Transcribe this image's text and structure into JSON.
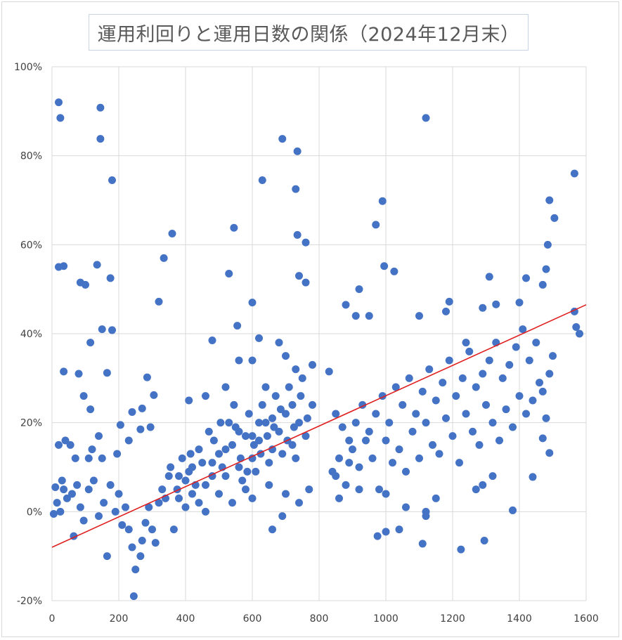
{
  "chart_data": {
    "type": "scatter",
    "title": "運用利回りと運用日数の関係（2024年12月末）",
    "xlabel": "",
    "ylabel": "",
    "xlim": [
      0,
      1600
    ],
    "ylim": [
      -0.2,
      1.0
    ],
    "x_ticks": [
      0,
      200,
      400,
      600,
      800,
      1000,
      1200,
      1400,
      1600
    ],
    "x_tick_labels": [
      "0",
      "200",
      "400",
      "600",
      "800",
      "1000",
      "1200",
      "1400",
      "1600"
    ],
    "y_ticks": [
      -0.2,
      0.0,
      0.2,
      0.4,
      0.6,
      0.8,
      1.0
    ],
    "y_tick_labels": [
      "-20%",
      "0%",
      "20%",
      "40%",
      "60%",
      "80%",
      "100%"
    ],
    "grid": true,
    "legend": "none",
    "colors": {
      "points": "#4472c4",
      "trendline": "#e02020",
      "grid": "#d9d9d9"
    },
    "trendline": {
      "x": [
        0,
        1600
      ],
      "y": [
        -0.08,
        0.465
      ]
    },
    "series": [
      {
        "points": [
          [
            20,
            0.92
          ],
          [
            25,
            0.885
          ],
          [
            145,
            0.908
          ],
          [
            145,
            0.838
          ],
          [
            180,
            0.745
          ],
          [
            20,
            0.55
          ],
          [
            35,
            0.552
          ],
          [
            85,
            0.515
          ],
          [
            100,
            0.51
          ],
          [
            135,
            0.555
          ],
          [
            175,
            0.525
          ],
          [
            150,
            0.41
          ],
          [
            180,
            0.408
          ],
          [
            115,
            0.38
          ],
          [
            35,
            0.315
          ],
          [
            80,
            0.31
          ],
          [
            165,
            0.312
          ],
          [
            320,
            0.472
          ],
          [
            335,
            0.57
          ],
          [
            360,
            0.625
          ],
          [
            285,
            0.302
          ],
          [
            305,
            0.262
          ],
          [
            270,
            0.232
          ],
          [
            240,
            0.224
          ],
          [
            205,
            0.195
          ],
          [
            265,
            0.185
          ],
          [
            295,
            0.19
          ],
          [
            230,
            0.16
          ],
          [
            195,
            0.13
          ],
          [
            115,
            0.23
          ],
          [
            95,
            0.26
          ],
          [
            40,
            0.16
          ],
          [
            55,
            0.15
          ],
          [
            20,
            0.15
          ],
          [
            110,
            0.12
          ],
          [
            140,
            0.17
          ],
          [
            150,
            0.12
          ],
          [
            70,
            0.12
          ],
          [
            120,
            0.14
          ],
          [
            10,
            0.055
          ],
          [
            15,
            0.02
          ],
          [
            25,
            0.0
          ],
          [
            35,
            0.05
          ],
          [
            45,
            0.03
          ],
          [
            60,
            0.04
          ],
          [
            5,
            -0.005
          ],
          [
            30,
            0.07
          ],
          [
            75,
            0.06
          ],
          [
            85,
            0.01
          ],
          [
            95,
            -0.02
          ],
          [
            65,
            -0.055
          ],
          [
            110,
            0.05
          ],
          [
            125,
            0.07
          ],
          [
            140,
            -0.01
          ],
          [
            155,
            0.02
          ],
          [
            165,
            -0.1
          ],
          [
            175,
            0.06
          ],
          [
            190,
            0.0
          ],
          [
            200,
            0.04
          ],
          [
            210,
            -0.03
          ],
          [
            220,
            0.01
          ],
          [
            230,
            -0.04
          ],
          [
            240,
            -0.08
          ],
          [
            250,
            -0.13
          ],
          [
            245,
            -0.19
          ],
          [
            265,
            -0.1
          ],
          [
            270,
            -0.065
          ],
          [
            280,
            -0.025
          ],
          [
            290,
            0.01
          ],
          [
            300,
            -0.04
          ],
          [
            310,
            -0.07
          ],
          [
            320,
            0.02
          ],
          [
            330,
            0.05
          ],
          [
            340,
            0.03
          ],
          [
            350,
            0.08
          ],
          [
            365,
            -0.04
          ],
          [
            380,
            0.03
          ],
          [
            400,
            0.07
          ],
          [
            420,
            0.1
          ],
          [
            440,
            0.02
          ],
          [
            460,
            0.06
          ],
          [
            480,
            0.11
          ],
          [
            500,
            0.13
          ],
          [
            520,
            0.08
          ],
          [
            540,
            0.15
          ],
          [
            560,
            0.1
          ],
          [
            580,
            0.17
          ],
          [
            600,
            0.12
          ],
          [
            620,
            0.16
          ],
          [
            640,
            0.2
          ],
          [
            660,
            0.14
          ],
          [
            680,
            0.18
          ],
          [
            700,
            0.22
          ],
          [
            720,
            0.15
          ],
          [
            740,
            0.2
          ],
          [
            760,
            0.17
          ],
          [
            780,
            0.24
          ],
          [
            550,
            0.19
          ],
          [
            500,
            0.04
          ],
          [
            460,
            0.0
          ],
          [
            430,
            0.06
          ],
          [
            410,
            0.09
          ],
          [
            390,
            0.12
          ],
          [
            375,
            0.05
          ],
          [
            440,
            0.14
          ],
          [
            470,
            0.18
          ],
          [
            510,
            0.1
          ],
          [
            530,
            0.2
          ],
          [
            570,
            0.07
          ],
          [
            590,
            0.22
          ],
          [
            610,
            0.09
          ],
          [
            630,
            0.24
          ],
          [
            650,
            0.11
          ],
          [
            670,
            0.26
          ],
          [
            690,
            0.13
          ],
          [
            710,
            0.28
          ],
          [
            730,
            0.12
          ],
          [
            750,
            0.3
          ],
          [
            770,
            0.05
          ],
          [
            600,
            0.03
          ],
          [
            650,
            0.06
          ],
          [
            700,
            0.04
          ],
          [
            740,
            0.02
          ],
          [
            660,
            -0.04
          ],
          [
            690,
            -0.01
          ],
          [
            540,
            0.02
          ],
          [
            580,
            0.05
          ],
          [
            480,
            0.08
          ],
          [
            520,
            0.14
          ],
          [
            560,
            0.18
          ],
          [
            620,
            0.2
          ],
          [
            720,
            0.24
          ],
          [
            660,
            0.21
          ],
          [
            600,
            0.17
          ],
          [
            450,
            0.11
          ],
          [
            420,
            0.04
          ],
          [
            400,
            0.01
          ],
          [
            380,
            0.08
          ],
          [
            355,
            0.1
          ],
          [
            415,
            0.13
          ],
          [
            485,
            0.16
          ],
          [
            505,
            0.2
          ],
          [
            545,
            0.24
          ],
          [
            565,
            0.12
          ],
          [
            585,
            0.09
          ],
          [
            605,
            0.15
          ],
          [
            625,
            0.13
          ],
          [
            645,
            0.17
          ],
          [
            665,
            0.19
          ],
          [
            685,
            0.23
          ],
          [
            705,
            0.16
          ],
          [
            725,
            0.19
          ],
          [
            745,
            0.26
          ],
          [
            765,
            0.21
          ],
          [
            780,
            0.33
          ],
          [
            730,
            0.32
          ],
          [
            700,
            0.35
          ],
          [
            680,
            0.38
          ],
          [
            620,
            0.39
          ],
          [
            600,
            0.47
          ],
          [
            555,
            0.418
          ],
          [
            545,
            0.638
          ],
          [
            530,
            0.535
          ],
          [
            480,
            0.385
          ],
          [
            600,
            0.34
          ],
          [
            640,
            0.28
          ],
          [
            520,
            0.28
          ],
          [
            460,
            0.26
          ],
          [
            410,
            0.25
          ],
          [
            560,
            0.34
          ],
          [
            630,
            0.745
          ],
          [
            690,
            0.838
          ],
          [
            735,
            0.81
          ],
          [
            730,
            0.725
          ],
          [
            735,
            0.622
          ],
          [
            760,
            0.605
          ],
          [
            740,
            0.53
          ],
          [
            760,
            0.515
          ],
          [
            830,
            0.315
          ],
          [
            850,
            0.22
          ],
          [
            870,
            0.19
          ],
          [
            890,
            0.16
          ],
          [
            910,
            0.2
          ],
          [
            930,
            0.24
          ],
          [
            950,
            0.18
          ],
          [
            970,
            0.22
          ],
          [
            990,
            0.26
          ],
          [
            1010,
            0.2
          ],
          [
            1030,
            0.28
          ],
          [
            1050,
            0.24
          ],
          [
            1070,
            0.3
          ],
          [
            1090,
            0.22
          ],
          [
            1110,
            0.27
          ],
          [
            1130,
            0.32
          ],
          [
            1150,
            0.25
          ],
          [
            1170,
            0.29
          ],
          [
            1190,
            0.34
          ],
          [
            1210,
            0.26
          ],
          [
            1230,
            0.3
          ],
          [
            1250,
            0.36
          ],
          [
            1270,
            0.28
          ],
          [
            1290,
            0.31
          ],
          [
            1310,
            0.34
          ],
          [
            1330,
            0.38
          ],
          [
            1350,
            0.3
          ],
          [
            1370,
            0.33
          ],
          [
            1390,
            0.37
          ],
          [
            1410,
            0.41
          ],
          [
            1430,
            0.34
          ],
          [
            1450,
            0.38
          ],
          [
            1470,
            0.27
          ],
          [
            1490,
            0.31
          ],
          [
            1500,
            0.35
          ],
          [
            840,
            0.09
          ],
          [
            860,
            0.12
          ],
          [
            880,
            0.06
          ],
          [
            900,
            0.14
          ],
          [
            920,
            0.1
          ],
          [
            940,
            0.16
          ],
          [
            960,
            0.12
          ],
          [
            980,
            0.05
          ],
          [
            1000,
            0.16
          ],
          [
            1020,
            0.11
          ],
          [
            1040,
            0.14
          ],
          [
            1060,
            0.09
          ],
          [
            1080,
            0.18
          ],
          [
            1100,
            0.12
          ],
          [
            1120,
            0.2
          ],
          [
            1140,
            0.15
          ],
          [
            1160,
            0.13
          ],
          [
            1180,
            0.21
          ],
          [
            1200,
            0.17
          ],
          [
            1220,
            0.11
          ],
          [
            1240,
            0.22
          ],
          [
            1260,
            0.18
          ],
          [
            1280,
            0.15
          ],
          [
            1300,
            0.24
          ],
          [
            1320,
            0.2
          ],
          [
            1340,
            0.16
          ],
          [
            1360,
            0.23
          ],
          [
            1380,
            0.19
          ],
          [
            1400,
            0.26
          ],
          [
            1420,
            0.22
          ],
          [
            1440,
            0.25
          ],
          [
            1460,
            0.29
          ],
          [
            1480,
            0.21
          ],
          [
            880,
            0.465
          ],
          [
            910,
            0.44
          ],
          [
            920,
            0.5
          ],
          [
            950,
            0.44
          ],
          [
            970,
            0.645
          ],
          [
            990,
            0.698
          ],
          [
            995,
            0.552
          ],
          [
            1025,
            0.54
          ],
          [
            1120,
            0.885
          ],
          [
            1100,
            0.44
          ],
          [
            1180,
            0.45
          ],
          [
            1190,
            0.472
          ],
          [
            1240,
            0.38
          ],
          [
            1290,
            0.458
          ],
          [
            1310,
            0.528
          ],
          [
            1330,
            0.466
          ],
          [
            1400,
            0.47
          ],
          [
            1420,
            0.525
          ],
          [
            1470,
            0.51
          ],
          [
            1480,
            0.545
          ],
          [
            1485,
            0.6
          ],
          [
            1490,
            0.7
          ],
          [
            1505,
            0.66
          ],
          [
            1565,
            0.76
          ],
          [
            1565,
            0.45
          ],
          [
            1570,
            0.415
          ],
          [
            1580,
            0.4
          ],
          [
            1470,
            0.165
          ],
          [
            1490,
            0.132
          ],
          [
            1440,
            0.078
          ],
          [
            1380,
            0.003
          ],
          [
            1295,
            -0.065
          ],
          [
            1225,
            -0.085
          ],
          [
            1110,
            -0.072
          ],
          [
            1120,
            -0.01
          ],
          [
            1060,
            0.01
          ],
          [
            1040,
            -0.04
          ],
          [
            1000,
            -0.045
          ],
          [
            975,
            -0.055
          ],
          [
            1000,
            0.04
          ],
          [
            920,
            0.05
          ],
          [
            860,
            0.03
          ],
          [
            850,
            0.08
          ],
          [
            890,
            0.11
          ],
          [
            1270,
            0.05
          ],
          [
            1290,
            0.06
          ],
          [
            1320,
            0.08
          ],
          [
            1150,
            0.03
          ],
          [
            1120,
            0.0
          ]
        ]
      }
    ]
  }
}
